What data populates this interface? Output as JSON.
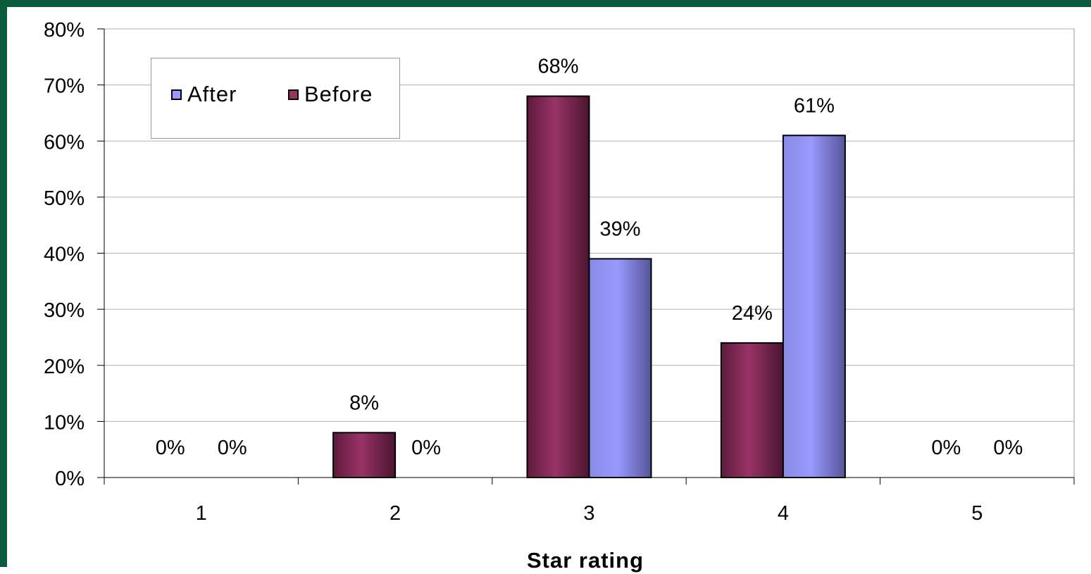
{
  "chart_data": {
    "type": "bar",
    "categories": [
      "1",
      "2",
      "3",
      "4",
      "5"
    ],
    "series": [
      {
        "name": "Before",
        "values": [
          0,
          8,
          68,
          24,
          0
        ],
        "labels": [
          "0%",
          "8%",
          "68%",
          "24%",
          "0%"
        ],
        "color": "#993366"
      },
      {
        "name": "After",
        "values": [
          0,
          0,
          39,
          61,
          0
        ],
        "labels": [
          "0%",
          "0%",
          "39%",
          "61%",
          "0%"
        ],
        "color": "#9999ff"
      }
    ],
    "xlabel": "Star rating",
    "ylabel": "",
    "ylim": [
      0,
      80
    ],
    "yticks": [
      "0%",
      "10%",
      "20%",
      "30%",
      "40%",
      "50%",
      "60%",
      "70%",
      "80%"
    ],
    "grid": true,
    "legend_position": "top-left",
    "legend": [
      "After",
      "Before"
    ]
  }
}
